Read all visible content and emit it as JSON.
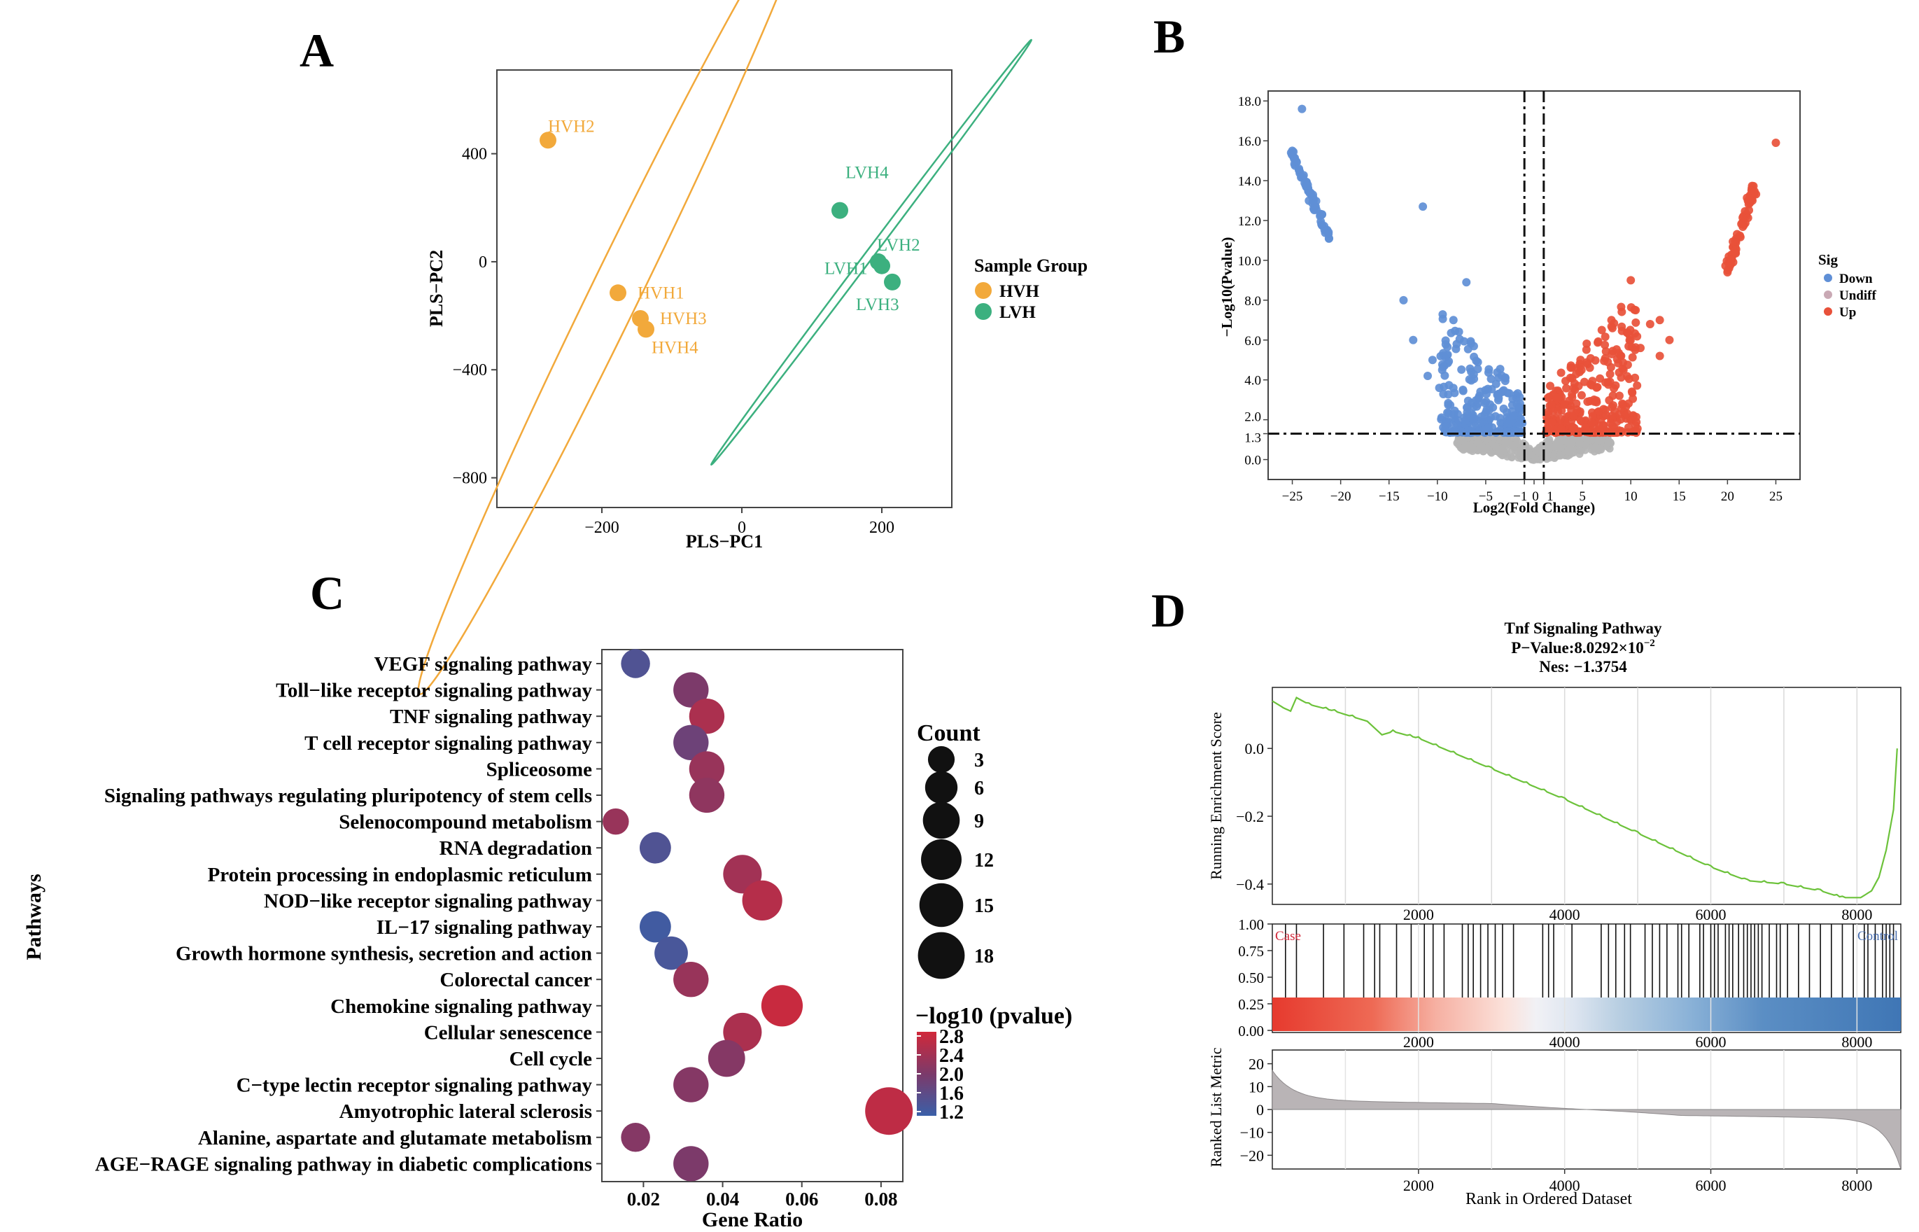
{
  "panels": {
    "a": "A",
    "b": "B",
    "c": "C",
    "d": "D"
  },
  "colors": {
    "hvh": "#F2A93B",
    "lvh": "#3CB07F",
    "down": "#5F8FD6",
    "undiff": "#B5B5B5",
    "up": "#E8513A",
    "gsea_line": "#6CC23A",
    "grad_high": "#D1283A",
    "grad_low": "#3A5FA8",
    "dot_mid": "#7C3A6A",
    "rank_fill": "#B9B4B6"
  },
  "chart_data": [
    {
      "id": "pls",
      "type": "scatter",
      "title": "",
      "xlabel": "PLS−PC1",
      "ylabel": "PLS−PC2",
      "xlim": [
        -350,
        300
      ],
      "ylim": [
        -910,
        710
      ],
      "xticks": [
        {
          "v": -200,
          "label": "−200"
        },
        {
          "v": 0,
          "label": "0"
        },
        {
          "v": 200,
          "label": "200"
        }
      ],
      "yticks": [
        {
          "v": 400,
          "label": "400"
        },
        {
          "v": 0,
          "label": "0"
        },
        {
          "v": -400,
          "label": "−400"
        },
        {
          "v": -800,
          "label": "−800"
        }
      ],
      "legend_title": "Sample Group",
      "legend": [
        {
          "name": "HVH",
          "color": "#F2A93B"
        },
        {
          "name": "LVH",
          "color": "#3CB07F"
        }
      ],
      "points": [
        {
          "label": "HVH2",
          "group": "HVH",
          "x": -277,
          "y": 450
        },
        {
          "label": "HVH1",
          "group": "HVH",
          "x": -177,
          "y": -115
        },
        {
          "label": "HVH3",
          "group": "HVH",
          "x": -145,
          "y": -210
        },
        {
          "label": "HVH4",
          "group": "HVH",
          "x": -137,
          "y": -250
        },
        {
          "label": "LVH4",
          "group": "LVH",
          "x": 140,
          "y": 190
        },
        {
          "label": "LVH2",
          "group": "LVH",
          "x": 195,
          "y": 0
        },
        {
          "label": "LVH1",
          "group": "LVH",
          "x": 200,
          "y": -15
        },
        {
          "label": "LVH3",
          "group": "LVH",
          "x": 215,
          "y": -75
        }
      ],
      "ellipses": [
        {
          "group": "HVH",
          "cx": -180,
          "cy": -110,
          "major": 1280,
          "minor": 70,
          "angle_deg": -64
        },
        {
          "group": "LVH",
          "cx": 185,
          "cy": 35,
          "major": 760,
          "minor": 12,
          "angle_deg": -53
        }
      ]
    },
    {
      "id": "volcano",
      "type": "scatter",
      "xlabel": "Log2(Fold Change)",
      "ylabel": "−Log10(Pvalue)",
      "xlim": [
        -27.5,
        27.5
      ],
      "ylim": [
        -1.0,
        18.5
      ],
      "xticks": [
        "−25",
        "−20",
        "−15",
        "−10",
        "−5",
        "−1",
        "0",
        "1",
        "5",
        "10",
        "15",
        "20",
        "25"
      ],
      "yticks": [
        "18.0",
        "16.0",
        "14.0",
        "12.0",
        "10.0",
        "8.0",
        "6.0",
        "4.0",
        "2.0",
        "1.3",
        "0.0"
      ],
      "fc_threshold": [
        -1,
        1
      ],
      "p_threshold": 1.3,
      "legend_title": "Sig",
      "legend": [
        {
          "name": "Down",
          "color": "#5F8FD6"
        },
        {
          "name": "Undiff",
          "color": "#C9A9B4"
        },
        {
          "name": "Up",
          "color": "#E8513A"
        }
      ],
      "highlighted_points": [
        {
          "x": -24.0,
          "y": 17.6
        },
        {
          "x": -25.0,
          "y": 15.5
        },
        {
          "x": -21.2,
          "y": 11.1
        },
        {
          "x": -11.5,
          "y": 12.7
        },
        {
          "x": -13.5,
          "y": 8.0
        },
        {
          "x": -7.0,
          "y": 8.9
        },
        {
          "x": 25.0,
          "y": 15.9
        },
        {
          "x": 20.0,
          "y": 9.4
        },
        {
          "x": 10.0,
          "y": 9.0
        },
        {
          "x": 13.0,
          "y": 7.0
        }
      ]
    },
    {
      "id": "kegg",
      "type": "scatter",
      "xlabel": "Gene Ratio",
      "ylabel": "Pathways",
      "xlim": [
        0.0095,
        0.0855
      ],
      "xticks": [
        {
          "v": 0.02,
          "label": "0.02"
        },
        {
          "v": 0.04,
          "label": "0.04"
        },
        {
          "v": 0.06,
          "label": "0.06"
        },
        {
          "v": 0.08,
          "label": "0.08"
        }
      ],
      "size_legend_title": "Count",
      "size_legend": [
        3,
        6,
        9,
        12,
        15,
        18
      ],
      "color_legend_title": "−log10 (pvalue)",
      "color_legend_ticks": [
        "2.8",
        "2.4",
        "2.0",
        "1.6",
        "1.2"
      ],
      "color_range": [
        1.1,
        2.9
      ],
      "pathways": [
        {
          "name": "VEGF signaling pathway",
          "ratio": 0.018,
          "count": 3,
          "logp": 1.4
        },
        {
          "name": "Toll−like receptor signaling pathway",
          "ratio": 0.032,
          "count": 6,
          "logp": 2.0
        },
        {
          "name": "TNF signaling pathway",
          "ratio": 0.036,
          "count": 6,
          "logp": 2.5
        },
        {
          "name": "T cell receptor signaling pathway",
          "ratio": 0.032,
          "count": 6,
          "logp": 1.8
        },
        {
          "name": "Spliceosome",
          "ratio": 0.036,
          "count": 6,
          "logp": 2.3
        },
        {
          "name": "Signaling pathways regulating pluripotency of stem cells",
          "ratio": 0.036,
          "count": 6,
          "logp": 2.2
        },
        {
          "name": "Selenocompound metabolism",
          "ratio": 0.013,
          "count": 2,
          "logp": 2.3
        },
        {
          "name": "RNA degradation",
          "ratio": 0.023,
          "count": 4,
          "logp": 1.4
        },
        {
          "name": "Protein processing in endoplasmic reticulum",
          "ratio": 0.045,
          "count": 8,
          "logp": 2.4
        },
        {
          "name": "NOD−like receptor signaling pathway",
          "ratio": 0.05,
          "count": 9,
          "logp": 2.6
        },
        {
          "name": "IL−17 signaling pathway",
          "ratio": 0.023,
          "count": 4,
          "logp": 1.2
        },
        {
          "name": "Growth hormone synthesis, secretion and action",
          "ratio": 0.027,
          "count": 5,
          "logp": 1.3
        },
        {
          "name": "Colorectal cancer",
          "ratio": 0.032,
          "count": 6,
          "logp": 2.3
        },
        {
          "name": "Chemokine signaling pathway",
          "ratio": 0.055,
          "count": 10,
          "logp": 2.8
        },
        {
          "name": "Cellular senescence",
          "ratio": 0.045,
          "count": 8,
          "logp": 2.5
        },
        {
          "name": "Cell cycle",
          "ratio": 0.041,
          "count": 7,
          "logp": 2.1
        },
        {
          "name": "C−type lectin receptor signaling pathway",
          "ratio": 0.032,
          "count": 6,
          "logp": 2.1
        },
        {
          "name": "Amyotrophic lateral sclerosis",
          "ratio": 0.082,
          "count": 15,
          "logp": 2.7
        },
        {
          "name": "Alanine, aspartate and glutamate metabolism",
          "ratio": 0.018,
          "count": 3,
          "logp": 2.1
        },
        {
          "name": "AGE−RAGE signaling pathway in diabetic complications",
          "ratio": 0.032,
          "count": 6,
          "logp": 2.0
        }
      ]
    },
    {
      "id": "gsea",
      "type": "line",
      "title": "Tnf Signaling Pathway",
      "pvalue_label": "P−Value:",
      "pvalue_text": "8.0292×10",
      "pvalue_exp": "−2",
      "nes_text": "Nes: −1.3754",
      "xlabel": "Rank in Ordered Dataset",
      "ylabel_top": "Running Enrichment Score",
      "ylabel_bottom": "Ranked List Metric",
      "xlim": [
        0,
        8600
      ],
      "xticks": [
        "2000",
        "4000",
        "6000",
        "8000"
      ],
      "es_ylim": [
        -0.46,
        0.18
      ],
      "es_yticks": [
        "0.0",
        "−0.2",
        "−0.4"
      ],
      "hit_yticks": [
        "1.00",
        "0.75",
        "0.50",
        "0.25",
        "0.00"
      ],
      "metric_ylim": [
        -26,
        26
      ],
      "metric_yticks": [
        "20",
        "10",
        "0",
        "−10",
        "−20"
      ],
      "case_label": "Case",
      "control_label": "Control",
      "es_curve": [
        [
          0,
          0.14
        ],
        [
          150,
          0.12
        ],
        [
          250,
          0.11
        ],
        [
          330,
          0.15
        ],
        [
          500,
          0.13
        ],
        [
          850,
          0.11
        ],
        [
          1300,
          0.08
        ],
        [
          1500,
          0.04
        ],
        [
          1650,
          0.05
        ],
        [
          2000,
          0.03
        ],
        [
          3000,
          -0.06
        ],
        [
          4000,
          -0.15
        ],
        [
          5000,
          -0.25
        ],
        [
          6000,
          -0.35
        ],
        [
          6500,
          -0.39
        ],
        [
          7000,
          -0.4
        ],
        [
          7500,
          -0.42
        ],
        [
          7800,
          -0.44
        ],
        [
          8050,
          -0.44
        ],
        [
          8200,
          -0.42
        ],
        [
          8300,
          -0.38
        ],
        [
          8400,
          -0.3
        ],
        [
          8500,
          -0.18
        ],
        [
          8550,
          0.0
        ]
      ],
      "hit_ranks": [
        180,
        330,
        700,
        980,
        1250,
        1400,
        1470,
        1700,
        1900,
        2080,
        2200,
        2350,
        2600,
        2680,
        2750,
        2850,
        2950,
        3050,
        3150,
        3300,
        3700,
        3780,
        3850,
        4100,
        4500,
        4600,
        4700,
        4820,
        4900,
        5100,
        5200,
        5300,
        5400,
        5550,
        5600,
        5700,
        5850,
        5900,
        6000,
        6050,
        6100,
        6200,
        6250,
        6300,
        6380,
        6450,
        6500,
        6550,
        6600,
        6650,
        6700,
        6800,
        6900,
        6950,
        7050,
        7200,
        7350,
        7500,
        7650,
        7800,
        7950,
        8100,
        8150,
        8250,
        8350,
        8400,
        8450,
        8500
      ]
    }
  ]
}
